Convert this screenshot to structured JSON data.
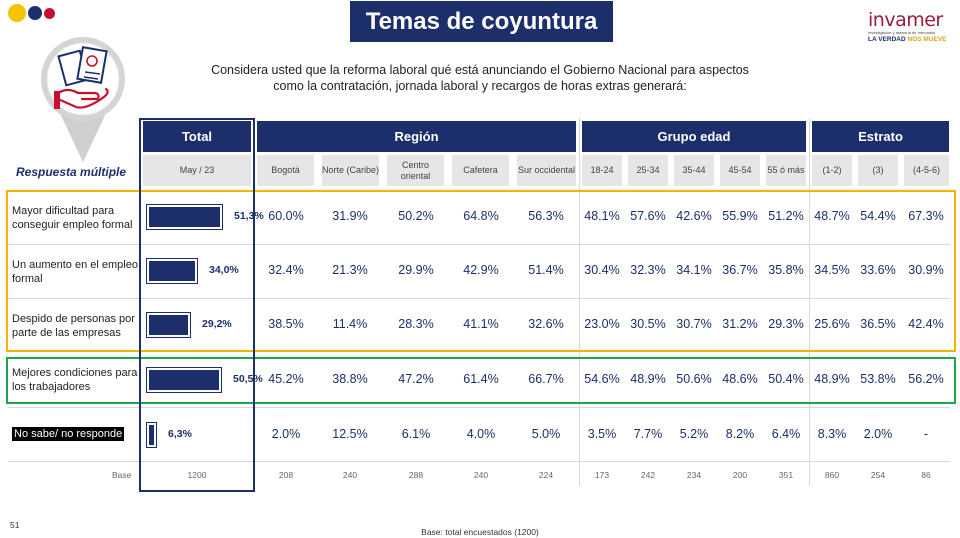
{
  "title": "Temas de coyuntura",
  "logo": {
    "name": "invamer",
    "subtitle": "Investigación y asesoría de mercados",
    "tagline_a": "LA VERDAD",
    "tagline_b": "NOS MUEVE"
  },
  "question": {
    "line1": "Considera usted que la reforma laboral qué está anunciando el Gobierno Nacional para aspectos",
    "line2": "como la contratación, jornada laboral y recargos de horas extras generará:"
  },
  "respuesta_label": "Respuesta múltiple",
  "groups": [
    {
      "label": "Total"
    },
    {
      "label": "Región"
    },
    {
      "label": "Grupo edad"
    },
    {
      "label": "Estrato"
    }
  ],
  "columns": [
    "May / 23",
    "Bogotá",
    "Norte (Caribe)",
    "Centro oriental",
    "Cafetera",
    "Sur occidental",
    "18-24",
    "25-34",
    "35-44",
    "45-54",
    "55 ó más",
    "(1-2)",
    "(3)",
    "(4-5-6)"
  ],
  "rows": [
    {
      "label": "Mayor dificultad para conseguir empleo formal",
      "total": "51,3%",
      "total_value": 51.3,
      "values": [
        "60.0%",
        "31.9%",
        "50.2%",
        "64.8%",
        "56.3%",
        "48.1%",
        "57.6%",
        "42.6%",
        "55.9%",
        "51.2%",
        "48.7%",
        "54.4%",
        "67.3%"
      ]
    },
    {
      "label": "Un aumento en el empleo formal",
      "total": "34,0%",
      "total_value": 34.0,
      "values": [
        "32.4%",
        "21.3%",
        "29.9%",
        "42.9%",
        "51.4%",
        "30.4%",
        "32.3%",
        "34.1%",
        "36.7%",
        "35.8%",
        "34.5%",
        "33.6%",
        "30.9%"
      ]
    },
    {
      "label": "Despido de personas por parte de las empresas",
      "total": "29,2%",
      "total_value": 29.2,
      "values": [
        "38.5%",
        "11.4%",
        "28.3%",
        "41.1%",
        "32.6%",
        "23.0%",
        "30.5%",
        "30.7%",
        "31.2%",
        "29.3%",
        "25.6%",
        "36.5%",
        "42.4%"
      ]
    },
    {
      "label": "Mejores condiciones para los trabajadores",
      "total": "50,5%",
      "total_value": 50.5,
      "values": [
        "45.2%",
        "38.8%",
        "47.2%",
        "61.4%",
        "66.7%",
        "54.6%",
        "48.9%",
        "50.6%",
        "48.6%",
        "50.4%",
        "48.9%",
        "53.8%",
        "56.2%"
      ]
    },
    {
      "label": "No sabe/ no responde",
      "total": "6,3%",
      "total_value": 6.3,
      "values": [
        "2.0%",
        "12.5%",
        "6.1%",
        "4.0%",
        "5.0%",
        "3.5%",
        "7.7%",
        "5.2%",
        "8.2%",
        "6.4%",
        "8.3%",
        "2.0%",
        "-"
      ]
    }
  ],
  "base": {
    "label": "Base",
    "values": [
      "1200",
      "208",
      "240",
      "288",
      "240",
      "224",
      "173",
      "242",
      "234",
      "200",
      "351",
      "860",
      "254",
      "86"
    ]
  },
  "page_number": "51",
  "footnote": "Base: total encuestados (1200)",
  "colors": {
    "navy": "#1c2f6b",
    "highlight_yellow": "#f4b400",
    "highlight_green": "#1aa84a",
    "logo_red": "#9b1c3b"
  }
}
